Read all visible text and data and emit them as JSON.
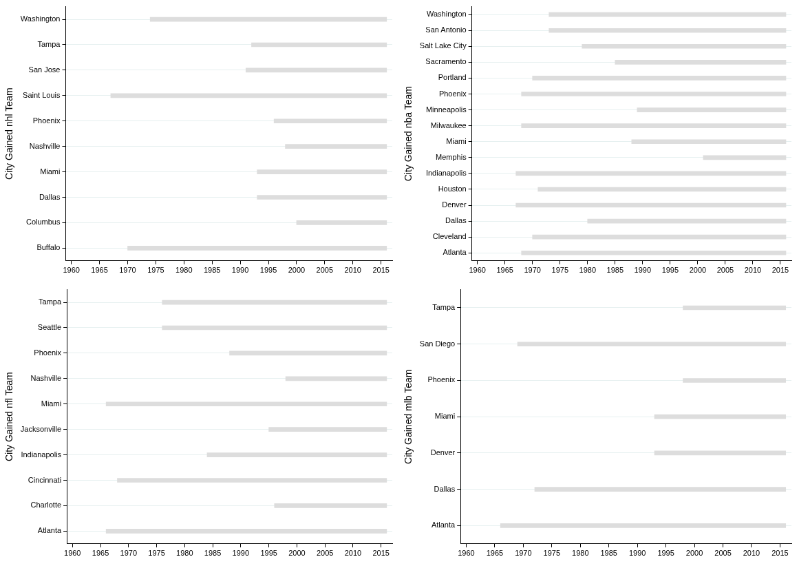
{
  "chart_data": [
    {
      "type": "bar",
      "orientation": "horizontal",
      "ylabel": "City Gained nhl Team",
      "categories": [
        "Washington",
        "Tampa",
        "San Jose",
        "Saint Louis",
        "Phoenix",
        "Nashville",
        "Miami",
        "Dallas",
        "Columbus",
        "Buffalo"
      ],
      "base": [
        1974,
        1992,
        1991,
        1967,
        1996,
        1998,
        1993,
        1993,
        2000,
        1970
      ],
      "values": [
        42,
        24,
        25,
        49,
        20,
        18,
        23,
        23,
        16,
        46
      ],
      "color": "#dddddd",
      "xlim": [
        1959,
        2017
      ],
      "xticks": [
        1960,
        1965,
        1970,
        1975,
        1980,
        1985,
        1990,
        1995,
        2000,
        2005,
        2010,
        2015
      ],
      "grid": "y",
      "legend": false
    },
    {
      "type": "bar",
      "orientation": "horizontal",
      "ylabel": "City Gained nba Team",
      "categories": [
        "Washington",
        "San Antonio",
        "Salt Lake City",
        "Sacramento",
        "Portland",
        "Phoenix",
        "Minneapolis",
        "Milwaukee",
        "Miami",
        "Memphis",
        "Indianapolis",
        "Houston",
        "Denver",
        "Dallas",
        "Cleveland",
        "Atlanta"
      ],
      "base": [
        1973,
        1973,
        1979,
        1985,
        1970,
        1968,
        1989,
        1968,
        1988,
        2001,
        1967,
        1971,
        1967,
        1980,
        1970,
        1968
      ],
      "values": [
        43,
        43,
        37,
        31,
        46,
        48,
        27,
        48,
        28,
        15,
        49,
        45,
        49,
        36,
        46,
        48
      ],
      "color": "#dddddd",
      "xlim": [
        1959,
        2017
      ],
      "xticks": [
        1960,
        1965,
        1970,
        1975,
        1980,
        1985,
        1990,
        1995,
        2000,
        2005,
        2010,
        2015
      ],
      "grid": "y",
      "legend": false
    },
    {
      "type": "bar",
      "orientation": "horizontal",
      "ylabel": "City Gained nfl Team",
      "categories": [
        "Tampa",
        "Seattle",
        "Phoenix",
        "Nashville",
        "Miami",
        "Jacksonville",
        "Indianapolis",
        "Cincinnati",
        "Charlotte",
        "Atlanta"
      ],
      "base": [
        1976,
        1976,
        1988,
        1998,
        1966,
        1995,
        1984,
        1968,
        1996,
        1966
      ],
      "values": [
        40,
        40,
        28,
        18,
        50,
        21,
        32,
        48,
        20,
        50
      ],
      "color": "#dddddd",
      "xlim": [
        1959,
        2017
      ],
      "xticks": [
        1960,
        1965,
        1970,
        1975,
        1980,
        1985,
        1990,
        1995,
        2000,
        2005,
        2010,
        2015
      ],
      "grid": "y",
      "legend": false
    },
    {
      "type": "bar",
      "orientation": "horizontal",
      "ylabel": "City Gained mlb Team",
      "categories": [
        "Tampa",
        "San Diego",
        "Phoenix",
        "Miami",
        "Denver",
        "Dallas",
        "Atlanta"
      ],
      "base": [
        1998,
        1969,
        1998,
        1993,
        1993,
        1972,
        1966
      ],
      "values": [
        18,
        47,
        18,
        23,
        23,
        44,
        50
      ],
      "color": "#dddddd",
      "xlim": [
        1959,
        2017
      ],
      "xticks": [
        1960,
        1965,
        1970,
        1975,
        1980,
        1985,
        1990,
        1995,
        2000,
        2005,
        2010,
        2015
      ],
      "grid": "y",
      "legend": false
    }
  ]
}
